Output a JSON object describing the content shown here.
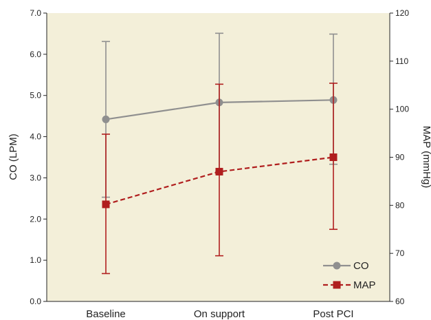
{
  "chart_data": {
    "type": "line",
    "categories": [
      "Baseline",
      "On support",
      "Post PCI"
    ],
    "ylabel_left": "CO (LPM)",
    "ylabel_right": "MAP (mmHg)",
    "ylim_left": [
      0,
      7
    ],
    "ylim_right": [
      60,
      120
    ],
    "yticks_left": [
      "0.0",
      "1.0",
      "2.0",
      "3.0",
      "4.0",
      "5.0",
      "6.0",
      "7.0"
    ],
    "yticks_right": [
      "60",
      "70",
      "80",
      "90",
      "100",
      "110",
      "120"
    ],
    "grid": false,
    "legend_position": "bottom-right",
    "background_color": "#f3efd9",
    "series": [
      {
        "name": "CO",
        "axis": "left",
        "color": "#8f8f8f",
        "marker": "circle",
        "line_style": "solid",
        "values": [
          4.42,
          4.83,
          4.89
        ],
        "err_low": [
          2.53,
          3.15,
          3.33
        ],
        "err_high": [
          6.31,
          6.51,
          6.49
        ]
      },
      {
        "name": "MAP",
        "axis": "right",
        "color": "#b01e1e",
        "marker": "square",
        "line_style": "dashed",
        "values": [
          80.2,
          87.0,
          90.0
        ],
        "err_low": [
          65.8,
          69.5,
          75.0
        ],
        "err_high": [
          94.8,
          105.2,
          105.4
        ]
      }
    ]
  }
}
